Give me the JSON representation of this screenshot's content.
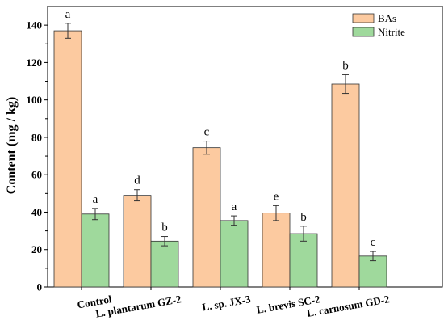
{
  "chart_data": {
    "type": "bar",
    "categories": [
      "Control",
      "L. plantarum GZ-2",
      "L. sp. JX-3",
      "L. brevis SC-2",
      "L. carnosum GD-2"
    ],
    "series": [
      {
        "name": "BAs",
        "color": "#FCCAA0",
        "values": [
          137,
          49,
          74.5,
          39.5,
          108.5
        ],
        "errors": [
          4,
          3,
          3.5,
          4,
          5
        ],
        "letters": [
          "a",
          "d",
          "c",
          "e",
          "b"
        ]
      },
      {
        "name": "Nitrite",
        "color": "#9FD99C",
        "values": [
          39,
          24.5,
          35.5,
          28.5,
          16.5
        ],
        "errors": [
          3,
          2.5,
          2.5,
          4,
          2.5
        ],
        "letters": [
          "a",
          "b",
          "a",
          "b",
          "c"
        ]
      }
    ],
    "xlabel": "",
    "ylabel": "Content (mg / kg)",
    "ylim": [
      0,
      150
    ],
    "yticks": [
      0,
      20,
      40,
      60,
      80,
      100,
      120,
      140
    ],
    "legend": "top-right",
    "grid": false
  }
}
